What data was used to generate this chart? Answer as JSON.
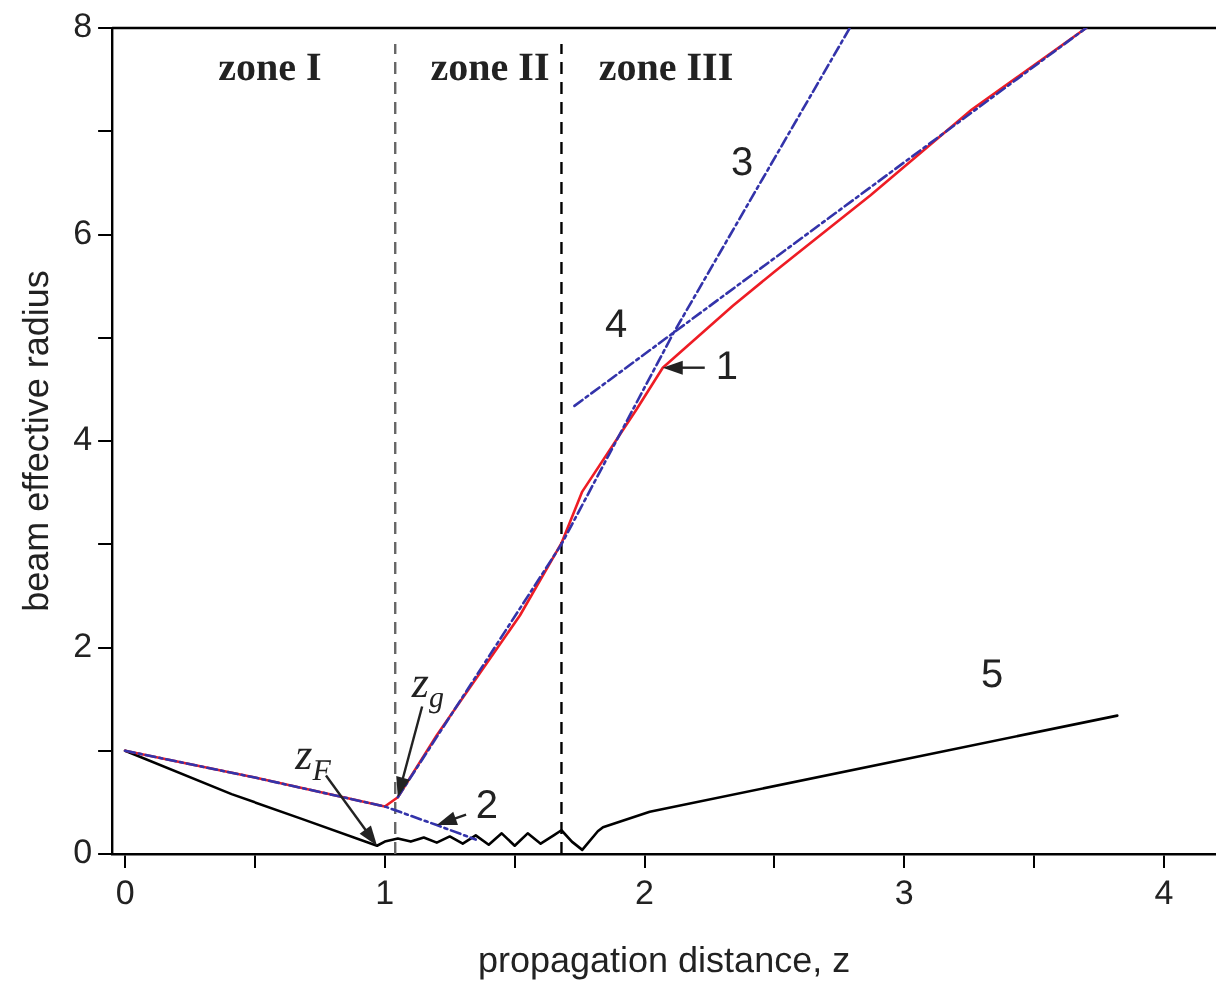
{
  "chart_data": {
    "type": "line",
    "xlabel": "propagation distance, z",
    "ylabel": "beam effective radius",
    "xlim": [
      -0.05,
      4.2
    ],
    "xticks": [
      0,
      {
        "value": 0.5,
        "label": null
      },
      1,
      {
        "value": 1.5,
        "label": null
      },
      2,
      {
        "value": 2.5,
        "label": null
      },
      3,
      {
        "value": 3.5,
        "label": null
      },
      4
    ],
    "ylim": [
      0,
      8
    ],
    "yticks": [
      0,
      {
        "value": 1,
        "label": null
      },
      2,
      {
        "value": 3,
        "label": null
      },
      4,
      {
        "value": 5,
        "label": null
      },
      6,
      {
        "value": 7,
        "label": null
      },
      8
    ],
    "grid": false,
    "legend": false,
    "marker": "none",
    "series": [
      {
        "color": "#ee1c24",
        "line_style": "solid",
        "x": [
          0,
          0.5,
          1.0,
          1.05,
          1.2,
          1.52,
          1.68,
          1.76,
          1.97,
          2.07,
          2.34,
          2.5,
          2.87,
          3.26,
          3.7
        ],
        "values": [
          1,
          0.74,
          0.46,
          0.55,
          1.15,
          2.31,
          3.01,
          3.51,
          4.31,
          4.71,
          5.31,
          5.64,
          6.38,
          7.21,
          8
        ]
      },
      {
        "color": "#3333aa",
        "line_style": "dashed",
        "x": [
          0,
          0.5,
          1.0,
          1.2,
          1.35
        ],
        "values": [
          1,
          0.74,
          0.46,
          0.28,
          0.14
        ]
      },
      {
        "color": "#3333aa",
        "line_style": "dashed",
        "x": [
          1.05,
          1.68,
          2.11,
          2.79
        ],
        "values": [
          0.55,
          3.0,
          5.04,
          8
        ]
      },
      {
        "color": "#3333aa",
        "line_style": "dashed",
        "x": [
          1.73,
          3.7
        ],
        "values": [
          4.34,
          8
        ]
      },
      {
        "color": "#000000",
        "line_style": "solid",
        "x": [
          0,
          0.41,
          0.68,
          0.97,
          1.0,
          1.05,
          1.1,
          1.15,
          1.2,
          1.25,
          1.3,
          1.35,
          1.4,
          1.45,
          1.5,
          1.55,
          1.6,
          1.65,
          1.68,
          1.72,
          1.76,
          1.82,
          1.84,
          2.02,
          3.82
        ],
        "values": [
          1,
          0.58,
          0.34,
          0.08,
          0.12,
          0.15,
          0.12,
          0.16,
          0.11,
          0.17,
          0.1,
          0.18,
          0.09,
          0.2,
          0.08,
          0.2,
          0.1,
          0.18,
          0.23,
          0.12,
          0.04,
          0.22,
          0.26,
          0.41,
          1.34
        ]
      }
    ],
    "ref_lines": [
      {
        "axis": "x",
        "value": 1.04,
        "color": "#666666",
        "line_style": "dashed"
      },
      {
        "axis": "x",
        "value": 1.68,
        "color": "#000000",
        "line_style": "dashed"
      }
    ],
    "annotations": [
      "zone I",
      "zone II",
      "zone III",
      {
        "text": "1",
        "x": 2.07,
        "y": 4.71
      },
      {
        "text": "2",
        "x": 1.2,
        "y": 0.28
      },
      "3",
      "4",
      "5",
      {
        "text": "z$_{F}$",
        "x": 0.97,
        "y": 0.08
      },
      {
        "text": "z$_{g}$",
        "x": 1.05,
        "y": 0.55
      }
    ]
  }
}
